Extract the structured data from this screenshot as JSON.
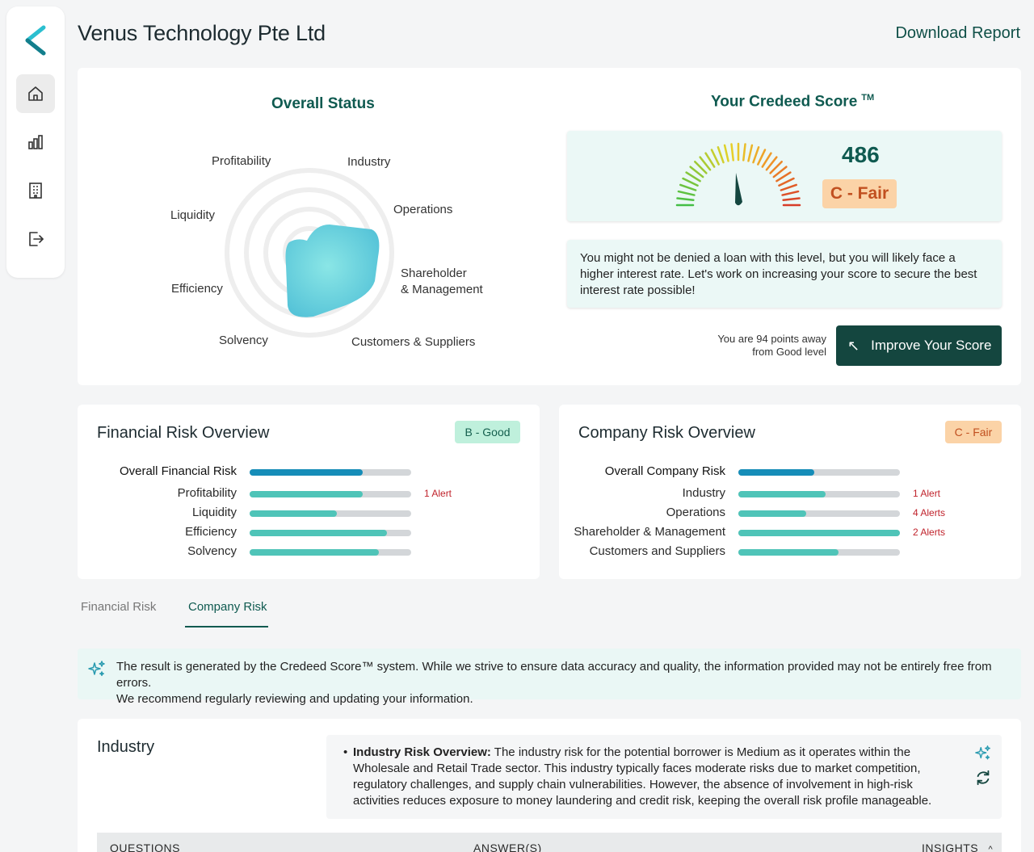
{
  "header": {
    "title": "Venus Technology Pte Ltd",
    "download_label": "Download Report"
  },
  "sidebar": {
    "items": [
      {
        "icon": "home-icon",
        "active": true
      },
      {
        "icon": "bar-chart-icon",
        "active": false
      },
      {
        "icon": "building-icon",
        "active": false
      },
      {
        "icon": "logout-icon",
        "active": false
      }
    ]
  },
  "overall_status": {
    "title": "Overall Status",
    "labels": [
      "Profitability",
      "Industry",
      "Operations",
      "Shareholder",
      "& Management",
      "Customers & Suppliers",
      "Solvency",
      "Efficiency",
      "Liquidity"
    ]
  },
  "credeed_score": {
    "title": "Your Credeed Score",
    "trademark": "TM",
    "score": "486",
    "grade": "C - Fair",
    "message": "You might not be denied a loan with this level, but you will likely face a higher interest rate. Let's work on increasing your score to secure the best interest rate possible!",
    "points_away_line1": "You are 94 points away",
    "points_away_line2": "from Good level",
    "improve_label": "Improve Your Score"
  },
  "financial_risk": {
    "title": "Financial Risk Overview",
    "badge": "B - Good",
    "rows": [
      {
        "label": "Overall Financial Risk",
        "level": 0.7,
        "overall": true,
        "alert": ""
      },
      {
        "label": "Profitability",
        "level": 0.7,
        "overall": false,
        "alert": "1 Alert"
      },
      {
        "label": "Liquidity",
        "level": 0.54,
        "overall": false,
        "alert": ""
      },
      {
        "label": "Efficiency",
        "level": 0.85,
        "overall": false,
        "alert": ""
      },
      {
        "label": "Solvency",
        "level": 0.8,
        "overall": false,
        "alert": ""
      }
    ]
  },
  "company_risk": {
    "title": "Company Risk Overview",
    "badge": "C - Fair",
    "rows": [
      {
        "label": "Overall Company Risk",
        "level": 0.47,
        "overall": true,
        "alert": ""
      },
      {
        "label": "Industry",
        "level": 0.54,
        "overall": false,
        "alert": "1 Alert"
      },
      {
        "label": "Operations",
        "level": 0.42,
        "overall": false,
        "alert": "4 Alerts"
      },
      {
        "label": "Shareholder & Management",
        "level": 1.0,
        "overall": false,
        "alert": "2 Alerts"
      },
      {
        "label": "Customers and Suppliers",
        "level": 0.62,
        "overall": false,
        "alert": ""
      }
    ]
  },
  "tabs": [
    {
      "label": "Financial Risk",
      "active": false
    },
    {
      "label": "Company Risk",
      "active": true
    }
  ],
  "notice": {
    "line1": "The result is generated by the Credeed Score™ system. While we strive to ensure data accuracy and quality, the information provided may not be entirely free from errors.",
    "line2": "We recommend regularly reviewing and updating your information."
  },
  "industry": {
    "title": "Industry",
    "insight_heading": "Industry Risk Overview:",
    "insight_text": " The industry risk for the potential borrower is Medium as it operates within the Wholesale and Retail Trade sector. This industry typically faces moderate risks due to market competition, regulatory challenges, and supply chain vulnerabilities. However, the absence of involvement in high-risk activities reduces exposure to money laundering and credit risk, keeping the overall risk profile manageable.",
    "columns": [
      "QUESTIONS",
      "ANSWER(S)",
      "INSIGHTS"
    ]
  },
  "colors": {
    "brand_dark": "#14463f",
    "accent_teal": "#4fc4b8",
    "overall_bar": "#168db8",
    "alert_red": "#c0232c"
  }
}
